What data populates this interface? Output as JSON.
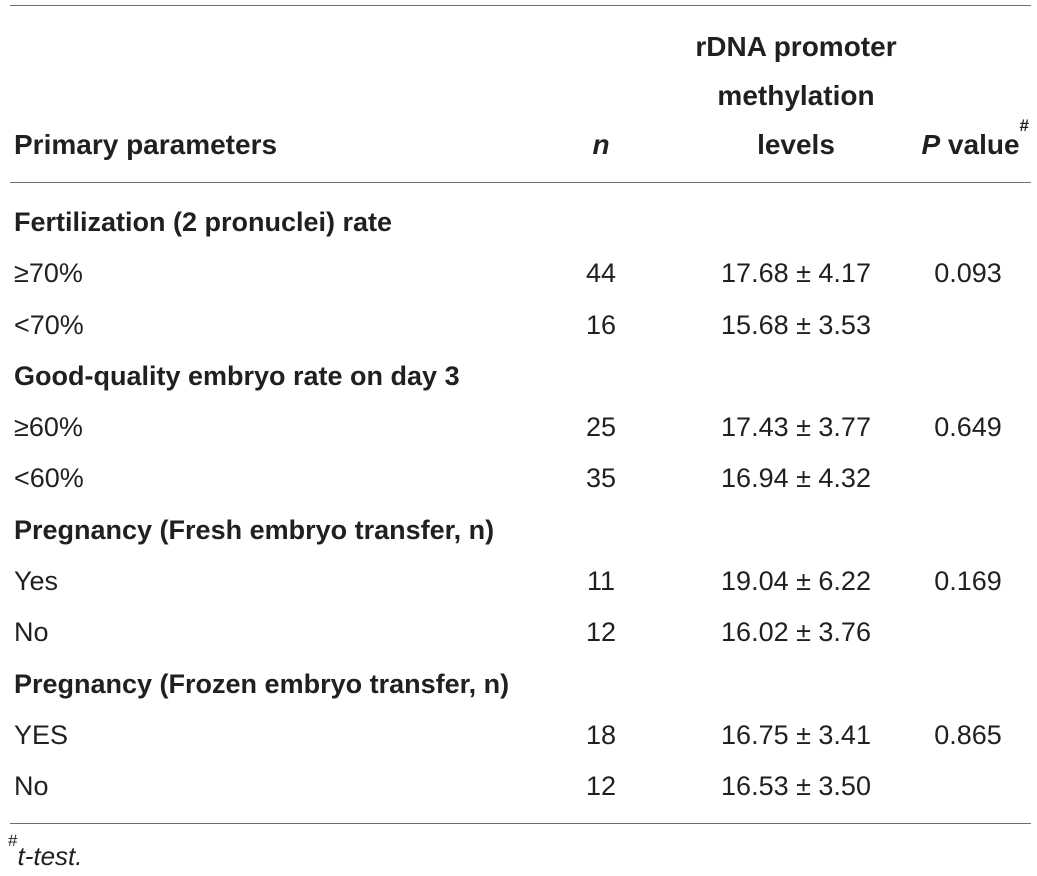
{
  "table": {
    "headers": {
      "param": "Primary parameters",
      "n": "n",
      "methylation_lines": [
        "rDNA promoter",
        "methylation",
        "levels"
      ],
      "p_value": {
        "italic": "P",
        "rest": " value",
        "mark": "#"
      }
    },
    "rows": [
      {
        "type": "group",
        "label": "Fertilization (2 pronuclei) rate"
      },
      {
        "type": "data",
        "label": "≥70%",
        "n": "44",
        "methylation": "17.68 ± 4.17",
        "p": "0.093"
      },
      {
        "type": "data",
        "label": "<70%",
        "n": "16",
        "methylation": "15.68 ± 3.53",
        "p": ""
      },
      {
        "type": "group",
        "label": "Good-quality embryo rate on day 3"
      },
      {
        "type": "data",
        "label": "≥60%",
        "n": "25",
        "methylation": "17.43 ± 3.77",
        "p": "0.649"
      },
      {
        "type": "data",
        "label": "<60%",
        "n": "35",
        "methylation": "16.94 ± 4.32",
        "p": ""
      },
      {
        "type": "group",
        "label": "Pregnancy (Fresh embryo transfer, n)"
      },
      {
        "type": "data",
        "label": "Yes",
        "n": "11",
        "methylation": "19.04 ± 6.22",
        "p": "0.169"
      },
      {
        "type": "data",
        "label": "No",
        "n": "12",
        "methylation": "16.02 ± 3.76",
        "p": ""
      },
      {
        "type": "group",
        "label": "Pregnancy (Frozen embryo transfer, n)"
      },
      {
        "type": "data",
        "label": "YES",
        "n": "18",
        "methylation": "16.75 ± 3.41",
        "p": "0.865"
      },
      {
        "type": "data",
        "label": "No",
        "n": "12",
        "methylation": "16.53 ± 3.50",
        "p": ""
      }
    ]
  },
  "footnote": {
    "mark": "#",
    "text": "t-test."
  },
  "colors": {
    "text": "#231f20",
    "rule": "#6d6e71"
  }
}
